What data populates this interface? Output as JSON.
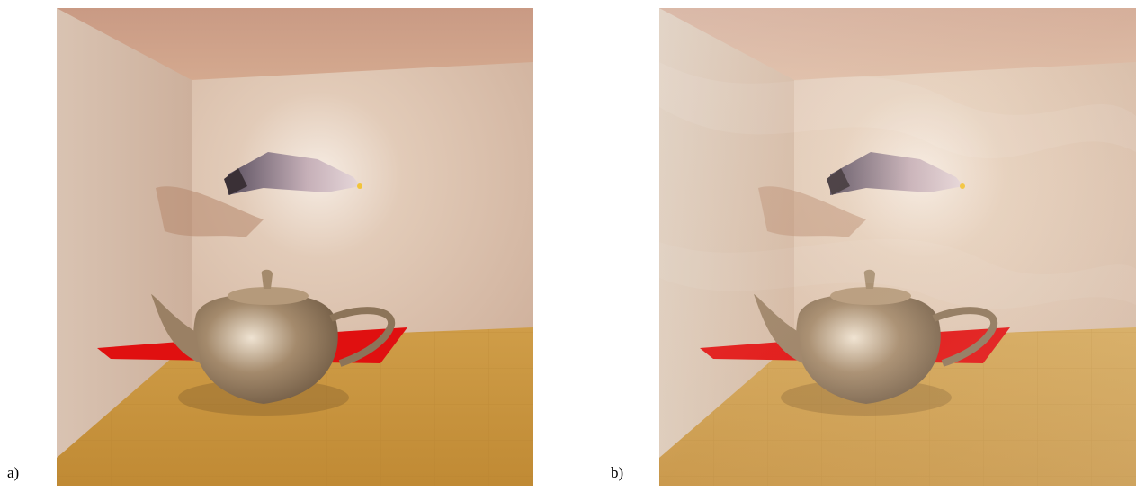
{
  "labels": {
    "a": "a)",
    "b": "b)"
  },
  "panels": [
    {
      "id": "a",
      "subject": "teapot-and-spaceship-room-render",
      "haze": false
    },
    {
      "id": "b",
      "subject": "teapot-and-spaceship-room-render",
      "haze": true
    }
  ],
  "colors": {
    "wall": "#d8b9a0",
    "ceiling": "#c8977f",
    "floor": "#c4923e",
    "red_mat": "#e01010",
    "teapot": "#b89a78"
  }
}
